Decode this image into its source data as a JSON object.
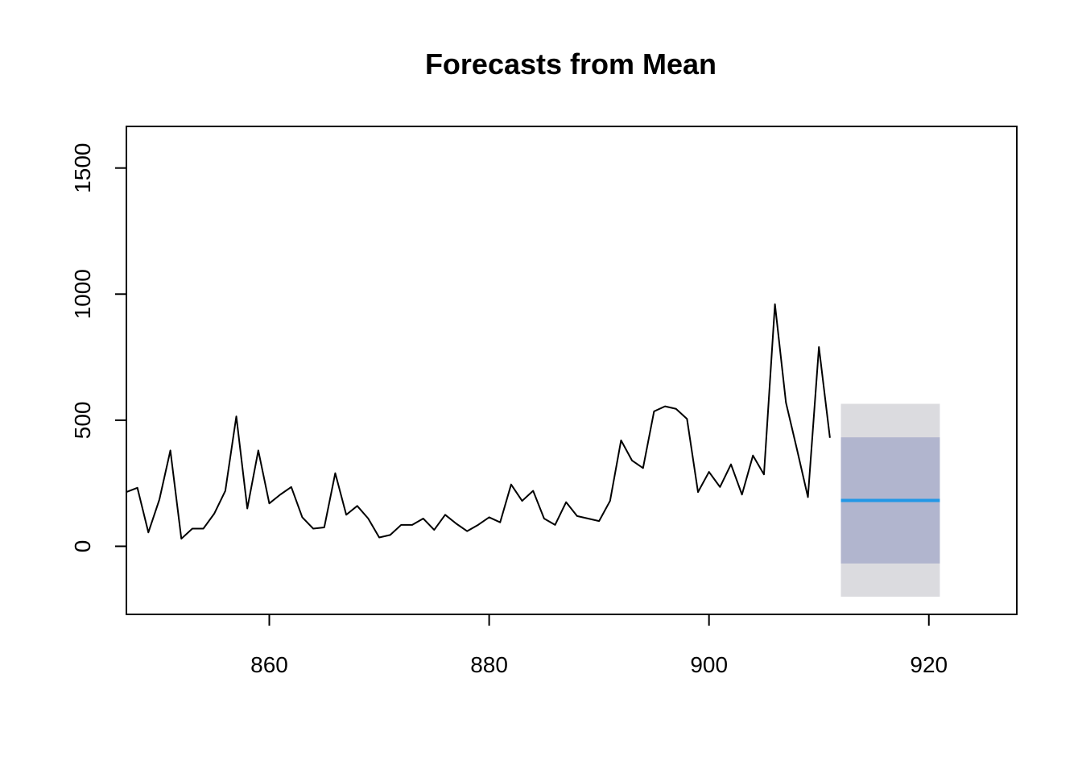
{
  "chart_data": {
    "type": "line",
    "title": "Forecasts from Mean",
    "xlabel": "",
    "ylabel": "",
    "xlim": [
      847,
      928
    ],
    "ylim": [
      -270,
      1665
    ],
    "grid": false,
    "x_ticks": [
      860,
      880,
      900,
      920
    ],
    "y_ticks": [
      0,
      500,
      1000,
      1500
    ],
    "series": [
      {
        "x": [
          847,
          848,
          849,
          850,
          851,
          852,
          853,
          854,
          855,
          856,
          857,
          858,
          859,
          860,
          861,
          862,
          863,
          864,
          865,
          866,
          867,
          868,
          869,
          870,
          871,
          872,
          873,
          874,
          875,
          876,
          877,
          878,
          879,
          880,
          881,
          882,
          883,
          884,
          885,
          886,
          887,
          888,
          889,
          890,
          891,
          892,
          893,
          894,
          895,
          896,
          897,
          898,
          899,
          900,
          901,
          902,
          903,
          904,
          905,
          906,
          907,
          908,
          909,
          910,
          911
        ],
        "values": [
          215,
          232,
          55,
          185,
          380,
          30,
          70,
          70,
          130,
          220,
          515,
          150,
          380,
          170,
          205,
          235,
          115,
          70,
          75,
          290,
          125,
          160,
          110,
          35,
          45,
          85,
          85,
          110,
          65,
          125,
          90,
          60,
          85,
          115,
          95,
          245,
          180,
          220,
          110,
          85,
          175,
          120,
          110,
          100,
          180,
          420,
          340,
          310,
          535,
          555,
          545,
          505,
          215,
          295,
          235,
          325,
          205,
          360,
          285,
          960,
          570,
          385,
          195,
          790,
          430
        ],
        "color": "#000000"
      }
    ],
    "forecast": {
      "x_start": 912,
      "x_end": 921,
      "mean": 182,
      "interval_80": [
        -68,
        432
      ],
      "interval_95": [
        -200,
        565
      ],
      "mean_color": "#2297E6",
      "band_80_color": "#B1B5CE",
      "band_95_color": "#DBDBDF"
    }
  }
}
